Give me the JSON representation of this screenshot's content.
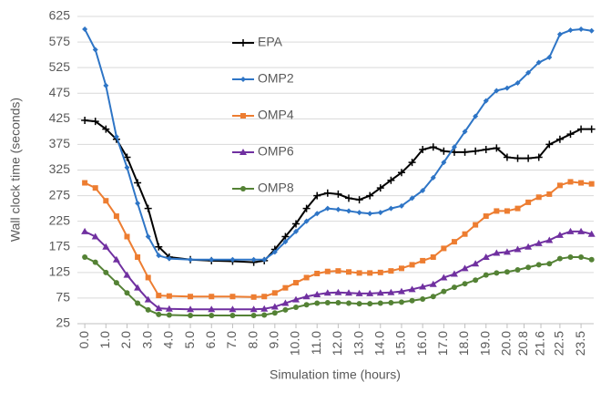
{
  "chart_data": {
    "type": "line",
    "xlabel": "Simulation time (hours)",
    "ylabel": "Wall clock time (seconds)",
    "x": [
      0,
      0.5,
      1,
      1.5,
      2,
      2.5,
      3,
      3.5,
      4,
      5,
      6,
      7,
      8,
      8.5,
      9,
      9.5,
      10,
      10.5,
      11,
      11.5,
      12,
      12.5,
      13,
      13.5,
      14,
      14.5,
      15,
      15.5,
      16,
      16.5,
      17,
      17.5,
      18,
      18.5,
      19,
      19.5,
      20,
      20.5,
      21,
      21.5,
      22,
      22.5,
      23,
      23.5,
      24
    ],
    "series": [
      {
        "name": "EPA",
        "color": "#000000",
        "marker": "plus",
        "values": [
          422,
          420,
          405,
          385,
          350,
          300,
          250,
          175,
          155,
          150,
          148,
          147,
          145,
          148,
          170,
          195,
          220,
          250,
          275,
          280,
          278,
          270,
          267,
          275,
          290,
          305,
          320,
          340,
          365,
          370,
          362,
          360,
          360,
          362,
          365,
          368,
          350,
          348,
          348,
          350,
          375,
          385,
          395,
          405,
          405
        ]
      },
      {
        "name": "OMP2",
        "color": "#2e75c6",
        "marker": "diamond",
        "values": [
          600,
          560,
          490,
          390,
          330,
          260,
          195,
          158,
          152,
          150,
          150,
          150,
          150,
          150,
          165,
          185,
          205,
          225,
          240,
          250,
          248,
          245,
          242,
          240,
          242,
          250,
          255,
          270,
          285,
          310,
          340,
          370,
          400,
          430,
          460,
          480,
          485,
          495,
          515,
          535,
          545,
          590,
          598,
          600,
          597
        ]
      },
      {
        "name": "OMP4",
        "color": "#ed7d31",
        "marker": "square",
        "values": [
          300,
          290,
          265,
          235,
          195,
          155,
          115,
          80,
          79,
          78,
          78,
          78,
          77,
          78,
          85,
          95,
          105,
          115,
          123,
          127,
          128,
          126,
          124,
          124,
          125,
          128,
          133,
          140,
          148,
          155,
          172,
          185,
          200,
          218,
          235,
          245,
          245,
          250,
          262,
          272,
          278,
          295,
          302,
          300,
          298
        ]
      },
      {
        "name": "OMP6",
        "color": "#7030a0",
        "marker": "triangle",
        "values": [
          205,
          195,
          175,
          150,
          120,
          95,
          72,
          55,
          54,
          53,
          53,
          53,
          53,
          54,
          58,
          65,
          72,
          78,
          82,
          85,
          86,
          85,
          84,
          84,
          85,
          86,
          88,
          92,
          97,
          102,
          115,
          122,
          133,
          142,
          155,
          163,
          165,
          170,
          175,
          182,
          188,
          198,
          205,
          205,
          200
        ]
      },
      {
        "name": "OMP8",
        "color": "#548235",
        "marker": "circle",
        "values": [
          155,
          145,
          125,
          105,
          85,
          65,
          52,
          43,
          42,
          41,
          41,
          41,
          41,
          42,
          46,
          52,
          57,
          62,
          65,
          66,
          66,
          65,
          64,
          64,
          65,
          66,
          67,
          70,
          73,
          78,
          88,
          96,
          103,
          110,
          120,
          124,
          126,
          130,
          135,
          140,
          142,
          152,
          155,
          155,
          150
        ]
      }
    ],
    "xlim": [
      -0.35,
      24.1
    ],
    "xticks": [
      {
        "value": 0,
        "label": "0.0"
      },
      {
        "value": 1,
        "label": "1.0"
      },
      {
        "value": 2,
        "label": "2.0"
      },
      {
        "value": 3,
        "label": "3.0"
      },
      {
        "value": 4,
        "label": "4.0"
      },
      {
        "value": 5,
        "label": "5.0"
      },
      {
        "value": 6,
        "label": "6.0"
      },
      {
        "value": 7,
        "label": "7.0"
      },
      {
        "value": 8,
        "label": "8.0"
      },
      {
        "value": 9,
        "label": "9.0"
      },
      {
        "value": 10,
        "label": "10.0"
      },
      {
        "value": 11,
        "label": "11.0"
      },
      {
        "value": 12,
        "label": "12.0"
      },
      {
        "value": 13,
        "label": "13.0"
      },
      {
        "value": 14,
        "label": "14.0"
      },
      {
        "value": 15,
        "label": "15.0"
      },
      {
        "value": 16,
        "label": "16.0"
      },
      {
        "value": 17,
        "label": "17.0"
      },
      {
        "value": 18,
        "label": "18.0"
      },
      {
        "value": 19,
        "label": "19.0"
      },
      {
        "value": 20,
        "label": "20.0"
      },
      20.8,
      21.6,
      22.5,
      23.5
    ],
    "ylim": [
      25,
      625
    ],
    "yticks": [
      25,
      75,
      125,
      175,
      225,
      275,
      325,
      375,
      425,
      475,
      525,
      575,
      625
    ],
    "grid": true,
    "legend": "upper-center"
  }
}
